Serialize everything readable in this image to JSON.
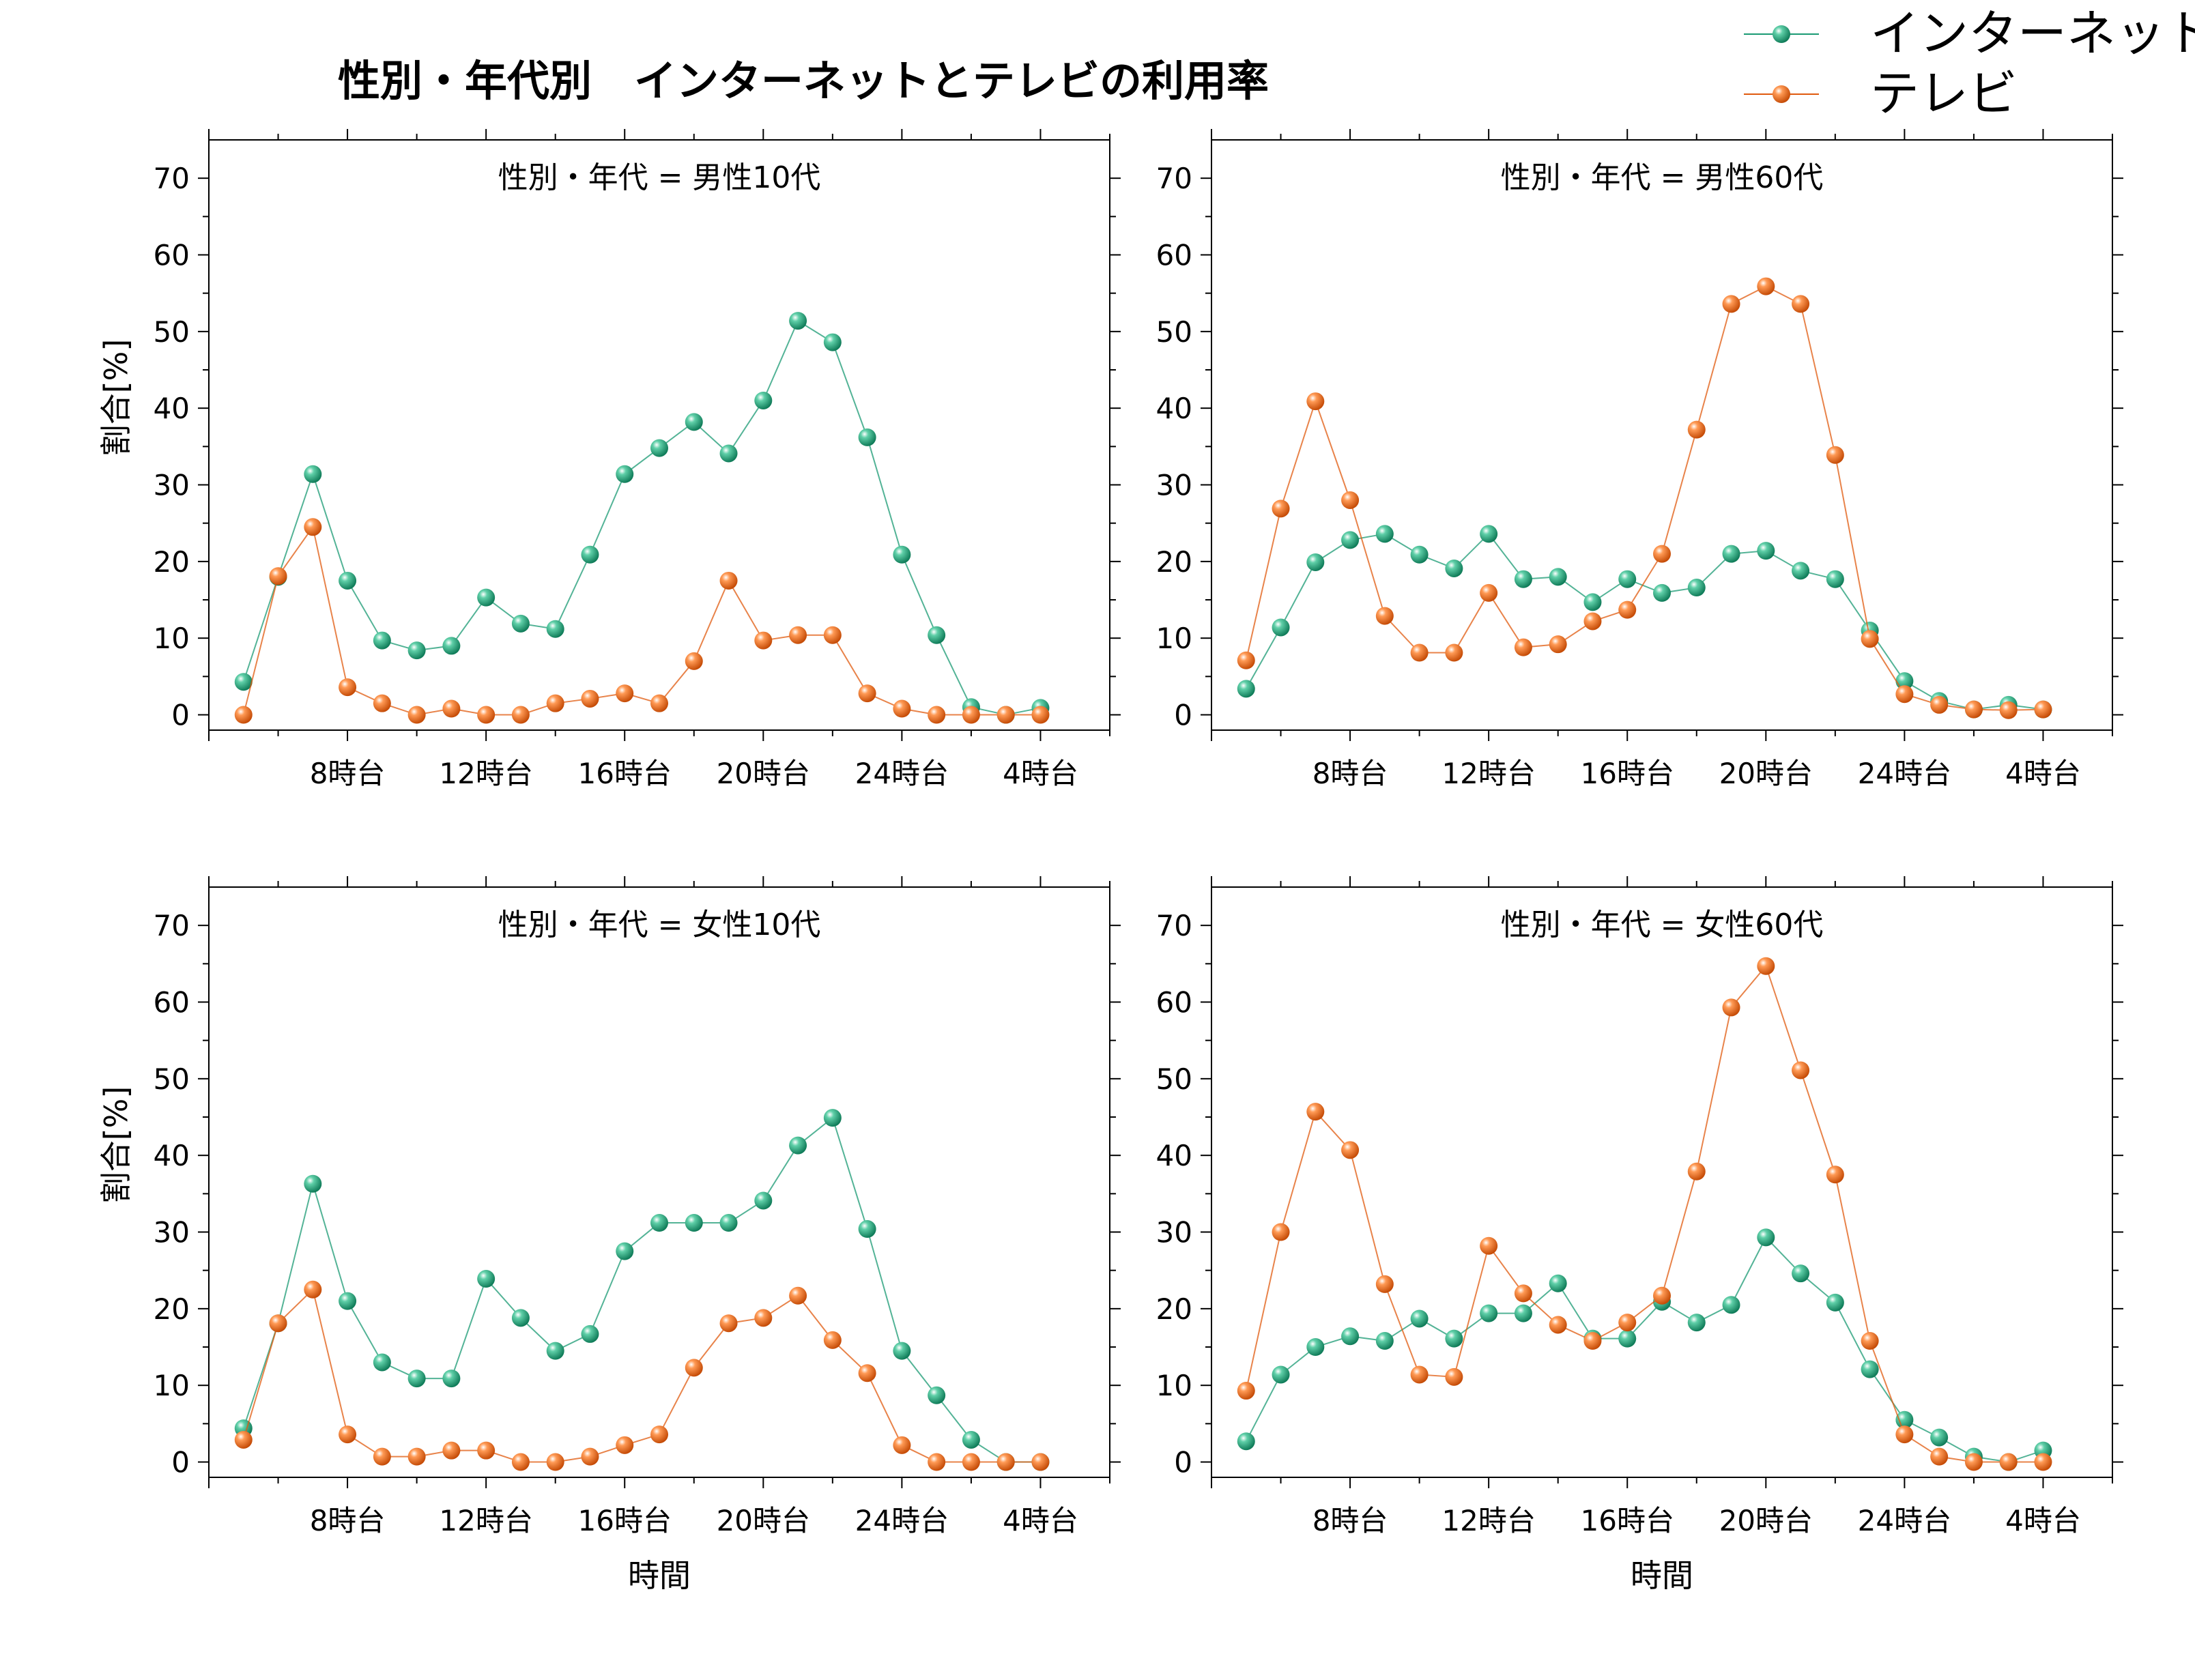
{
  "figure_title": "性別・年代別　インターネットとテレビの利用率",
  "legend": [
    {
      "name": "インターネット",
      "color": "#1a9a73"
    },
    {
      "name": "テレビ",
      "color": "#e05a0e"
    }
  ],
  "colors": {
    "internet": "#1a9a73",
    "tv": "#e05a0e",
    "axis": "#000000"
  },
  "chart_data": [
    {
      "type": "line",
      "title": "性別・年代 = 男性10代",
      "xlabel": "",
      "ylabel": "割合[%]",
      "x": [
        5,
        6,
        7,
        8,
        9,
        10,
        11,
        12,
        13,
        14,
        15,
        16,
        17,
        18,
        19,
        20,
        21,
        22,
        23,
        24,
        25,
        26,
        27,
        28
      ],
      "xticks": [
        8,
        12,
        16,
        20,
        24,
        28
      ],
      "xtick_labels": [
        "8時台",
        "12時台",
        "16時台",
        "20時台",
        "24時台",
        "4時台"
      ],
      "xlim": [
        4,
        30
      ],
      "ylim": [
        -2,
        75
      ],
      "yticks": [
        0,
        10,
        20,
        30,
        40,
        50,
        60,
        70
      ],
      "grid": false,
      "series": [
        {
          "name": "インターネット",
          "values": [
            4.3,
            18.0,
            31.4,
            17.5,
            9.7,
            8.4,
            9.0,
            15.3,
            11.9,
            11.2,
            20.9,
            31.4,
            34.8,
            38.2,
            34.1,
            41.0,
            51.4,
            48.6,
            36.2,
            20.9,
            10.4,
            1.0,
            0.0,
            0.9
          ]
        },
        {
          "name": "テレビ",
          "values": [
            0.0,
            18.1,
            24.5,
            3.6,
            1.5,
            0.0,
            0.8,
            0.0,
            0.0,
            1.5,
            2.1,
            2.8,
            1.5,
            7.0,
            17.5,
            9.7,
            10.4,
            10.4,
            2.8,
            0.8,
            0.0,
            0.0,
            0.0,
            0.0
          ]
        }
      ]
    },
    {
      "type": "line",
      "title": "性別・年代 = 男性60代",
      "xlabel": "",
      "ylabel": "",
      "x": [
        5,
        6,
        7,
        8,
        9,
        10,
        11,
        12,
        13,
        14,
        15,
        16,
        17,
        18,
        19,
        20,
        21,
        22,
        23,
        24,
        25,
        26,
        27,
        28
      ],
      "xticks": [
        8,
        12,
        16,
        20,
        24,
        28
      ],
      "xtick_labels": [
        "8時台",
        "12時台",
        "16時台",
        "20時台",
        "24時台",
        "4時台"
      ],
      "xlim": [
        4,
        30
      ],
      "ylim": [
        -2,
        75
      ],
      "yticks": [
        0,
        10,
        20,
        30,
        40,
        50,
        60,
        70
      ],
      "grid": false,
      "series": [
        {
          "name": "インターネット",
          "values": [
            3.4,
            11.4,
            19.9,
            22.8,
            23.6,
            20.9,
            19.1,
            23.6,
            17.7,
            18.0,
            14.7,
            17.7,
            15.9,
            16.6,
            21.0,
            21.4,
            18.8,
            17.7,
            11.0,
            4.4,
            1.8,
            0.7,
            1.3,
            0.7
          ]
        },
        {
          "name": "テレビ",
          "values": [
            7.1,
            26.9,
            40.9,
            28.0,
            12.9,
            8.1,
            8.1,
            15.9,
            8.8,
            9.2,
            12.2,
            13.7,
            21.0,
            37.2,
            53.6,
            55.9,
            53.6,
            33.9,
            9.9,
            2.7,
            1.3,
            0.7,
            0.6,
            0.7
          ]
        }
      ]
    },
    {
      "type": "line",
      "title": "性別・年代 = 女性10代",
      "xlabel": "時間",
      "ylabel": "割合[%]",
      "x": [
        5,
        6,
        7,
        8,
        9,
        10,
        11,
        12,
        13,
        14,
        15,
        16,
        17,
        18,
        19,
        20,
        21,
        22,
        23,
        24,
        25,
        26,
        27,
        28
      ],
      "xticks": [
        8,
        12,
        16,
        20,
        24,
        28
      ],
      "xtick_labels": [
        "8時台",
        "12時台",
        "16時台",
        "20時台",
        "24時台",
        "4時台"
      ],
      "xlim": [
        4,
        30
      ],
      "ylim": [
        -2,
        75
      ],
      "yticks": [
        0,
        10,
        20,
        30,
        40,
        50,
        60,
        70
      ],
      "grid": false,
      "series": [
        {
          "name": "インターネット",
          "values": [
            4.4,
            18.1,
            36.3,
            21.0,
            13.0,
            10.9,
            10.9,
            23.9,
            18.8,
            14.5,
            16.7,
            27.5,
            31.2,
            31.2,
            31.2,
            34.1,
            41.3,
            44.9,
            30.4,
            14.5,
            8.7,
            2.9,
            0.0,
            0.0
          ]
        },
        {
          "name": "テレビ",
          "values": [
            2.9,
            18.1,
            22.5,
            3.6,
            0.7,
            0.7,
            1.5,
            1.5,
            0.0,
            0.0,
            0.7,
            2.2,
            3.6,
            12.3,
            18.1,
            18.8,
            21.7,
            15.9,
            11.6,
            2.2,
            0.0,
            0.0,
            0.0,
            0.0
          ]
        }
      ]
    },
    {
      "type": "line",
      "title": "性別・年代 = 女性60代",
      "xlabel": "時間",
      "ylabel": "",
      "x": [
        5,
        6,
        7,
        8,
        9,
        10,
        11,
        12,
        13,
        14,
        15,
        16,
        17,
        18,
        19,
        20,
        21,
        22,
        23,
        24,
        25,
        26,
        27,
        28
      ],
      "xticks": [
        8,
        12,
        16,
        20,
        24,
        28
      ],
      "xtick_labels": [
        "8時台",
        "12時台",
        "16時台",
        "20時台",
        "24時台",
        "4時台"
      ],
      "xlim": [
        4,
        30
      ],
      "ylim": [
        -2,
        75
      ],
      "yticks": [
        0,
        10,
        20,
        30,
        40,
        50,
        60,
        70
      ],
      "grid": false,
      "series": [
        {
          "name": "インターネット",
          "values": [
            2.7,
            11.4,
            15.0,
            16.4,
            15.8,
            18.7,
            16.1,
            19.4,
            19.4,
            23.3,
            16.1,
            16.1,
            20.9,
            18.2,
            20.5,
            29.3,
            24.6,
            20.8,
            12.1,
            5.5,
            3.2,
            0.7,
            0.0,
            1.5
          ]
        },
        {
          "name": "テレビ",
          "values": [
            9.3,
            30.0,
            45.7,
            40.7,
            23.2,
            11.4,
            11.1,
            28.2,
            22.0,
            17.9,
            15.8,
            18.2,
            21.7,
            37.9,
            59.3,
            64.7,
            51.1,
            37.5,
            15.8,
            3.6,
            0.7,
            0.0,
            0.0,
            0.0
          ]
        }
      ]
    }
  ]
}
